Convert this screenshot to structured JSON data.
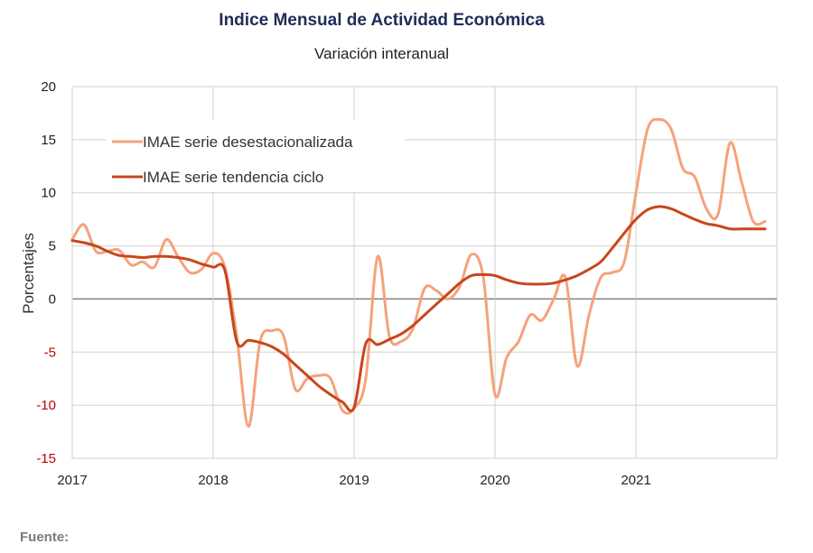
{
  "colors": {
    "seasonally_adjusted": "#f5a27c",
    "trend_cycle": "#c8461b",
    "negative_tick": "#c00000",
    "positive_tick": "#222222",
    "grid": "#d0d0d0",
    "zero_line": "#808080"
  },
  "footer": {
    "source_label": "Fuente:"
  },
  "chart_data": {
    "type": "line",
    "title": "Indice Mensual de  Actividad Económica",
    "subtitle": "Variación interanual",
    "ylabel": "Porcentajes",
    "xlabel": "",
    "ylim": [
      -15,
      20
    ],
    "yticks": [
      20,
      15,
      10,
      5,
      0,
      -5,
      -10,
      -15
    ],
    "xlim": [
      2017,
      2022
    ],
    "xticks": [
      2017,
      2018,
      2019,
      2020,
      2021
    ],
    "grid": true,
    "legend_position": "top-left",
    "series": [
      {
        "name": "IMAE serie desestacionalizada",
        "x": [
          2017.0,
          2017.083,
          2017.167,
          2017.25,
          2017.333,
          2017.417,
          2017.5,
          2017.583,
          2017.667,
          2017.75,
          2017.833,
          2017.917,
          2018.0,
          2018.083,
          2018.167,
          2018.25,
          2018.333,
          2018.417,
          2018.5,
          2018.583,
          2018.667,
          2018.75,
          2018.833,
          2018.917,
          2019.0,
          2019.083,
          2019.167,
          2019.25,
          2019.333,
          2019.417,
          2019.5,
          2019.583,
          2019.667,
          2019.75,
          2019.833,
          2019.917,
          2020.0,
          2020.083,
          2020.167,
          2020.25,
          2020.333,
          2020.417,
          2020.5,
          2020.583,
          2020.667,
          2020.75,
          2020.833,
          2020.917,
          2021.0,
          2021.083,
          2021.167,
          2021.25,
          2021.333,
          2021.417,
          2021.5,
          2021.583,
          2021.667,
          2021.75,
          2021.833,
          2021.917
        ],
        "values": [
          5.6,
          7.0,
          4.5,
          4.5,
          4.6,
          3.2,
          3.5,
          3.0,
          5.6,
          4.0,
          2.5,
          2.8,
          4.3,
          3.0,
          -3.5,
          -12.0,
          -4.0,
          -3.0,
          -3.5,
          -8.5,
          -7.5,
          -7.2,
          -7.5,
          -10.5,
          -10.3,
          -7.5,
          4.0,
          -3.5,
          -4.0,
          -2.8,
          1.0,
          0.8,
          0.0,
          1.2,
          4.2,
          2.0,
          -9.0,
          -5.5,
          -4.0,
          -1.5,
          -2.0,
          0.0,
          2.0,
          -6.3,
          -1.5,
          2.0,
          2.5,
          3.5,
          10.0,
          16.0,
          16.9,
          16.0,
          12.3,
          11.5,
          8.5,
          8.0,
          14.7,
          11.0,
          7.3,
          7.3
        ]
      },
      {
        "name": "IMAE serie  tendencia ciclo",
        "x": [
          2017.0,
          2017.083,
          2017.167,
          2017.25,
          2017.333,
          2017.417,
          2017.5,
          2017.583,
          2017.667,
          2017.75,
          2017.833,
          2017.917,
          2018.0,
          2018.083,
          2018.167,
          2018.25,
          2018.333,
          2018.417,
          2018.5,
          2018.583,
          2018.667,
          2018.75,
          2018.833,
          2018.917,
          2019.0,
          2019.083,
          2019.167,
          2019.25,
          2019.333,
          2019.417,
          2019.5,
          2019.583,
          2019.667,
          2019.75,
          2019.833,
          2019.917,
          2020.0,
          2020.083,
          2020.167,
          2020.25,
          2020.333,
          2020.417,
          2020.5,
          2020.583,
          2020.667,
          2020.75,
          2020.833,
          2020.917,
          2021.0,
          2021.083,
          2021.167,
          2021.25,
          2021.333,
          2021.417,
          2021.5,
          2021.583,
          2021.667,
          2021.75,
          2021.833,
          2021.917
        ],
        "values": [
          5.5,
          5.3,
          5.0,
          4.5,
          4.1,
          4.0,
          3.9,
          4.0,
          4.0,
          3.9,
          3.7,
          3.3,
          3.0,
          2.7,
          -4.0,
          -3.9,
          -4.1,
          -4.5,
          -5.2,
          -6.2,
          -7.2,
          -8.2,
          -9.0,
          -9.7,
          -10.2,
          -4.2,
          -4.3,
          -3.8,
          -3.3,
          -2.5,
          -1.5,
          -0.5,
          0.5,
          1.5,
          2.2,
          2.3,
          2.2,
          1.8,
          1.5,
          1.4,
          1.4,
          1.5,
          1.8,
          2.2,
          2.8,
          3.5,
          4.8,
          6.2,
          7.5,
          8.4,
          8.7,
          8.5,
          8.0,
          7.5,
          7.1,
          6.9,
          6.6,
          6.6,
          6.6,
          6.6
        ]
      }
    ]
  }
}
